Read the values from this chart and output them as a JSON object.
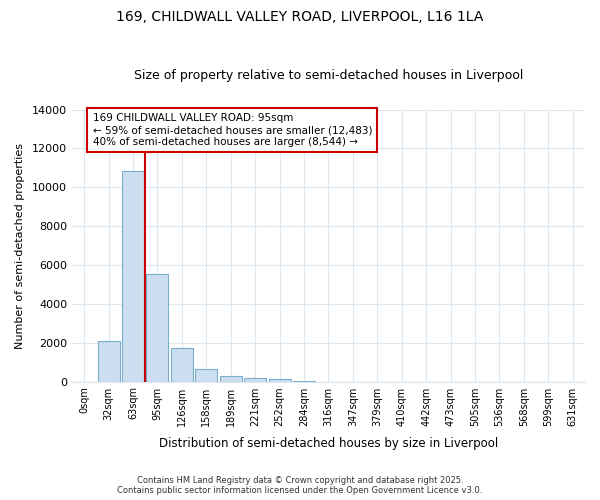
{
  "title1": "169, CHILDWALL VALLEY ROAD, LIVERPOOL, L16 1LA",
  "title2": "Size of property relative to semi-detached houses in Liverpool",
  "xlabel": "Distribution of semi-detached houses by size in Liverpool",
  "ylabel": "Number of semi-detached properties",
  "bar_categories": [
    "0sqm",
    "32sqm",
    "63sqm",
    "95sqm",
    "126sqm",
    "158sqm",
    "189sqm",
    "221sqm",
    "252sqm",
    "284sqm",
    "316sqm",
    "347sqm",
    "379sqm",
    "410sqm",
    "442sqm",
    "473sqm",
    "505sqm",
    "536sqm",
    "568sqm",
    "599sqm",
    "631sqm"
  ],
  "bar_values": [
    0,
    2100,
    10850,
    5550,
    1750,
    650,
    290,
    200,
    120,
    50,
    0,
    0,
    0,
    0,
    0,
    0,
    0,
    0,
    0,
    0,
    0
  ],
  "bar_color": "#ccdff0",
  "bar_edge_color": "#7aadcc",
  "vline_x_index": 3,
  "vline_color": "#cc0000",
  "annotation_text": "169 CHILDWALL VALLEY ROAD: 95sqm\n← 59% of semi-detached houses are smaller (12,483)\n40% of semi-detached houses are larger (8,544) →",
  "annotation_box_color": "white",
  "annotation_box_edge": "#cc0000",
  "ylim": [
    0,
    14000
  ],
  "yticks": [
    0,
    2000,
    4000,
    6000,
    8000,
    10000,
    12000,
    14000
  ],
  "footer1": "Contains HM Land Registry data © Crown copyright and database right 2025.",
  "footer2": "Contains public sector information licensed under the Open Government Licence v3.0.",
  "bg_color": "#ffffff",
  "plot_bg_color": "#ffffff",
  "grid_color": "#dde8f0"
}
